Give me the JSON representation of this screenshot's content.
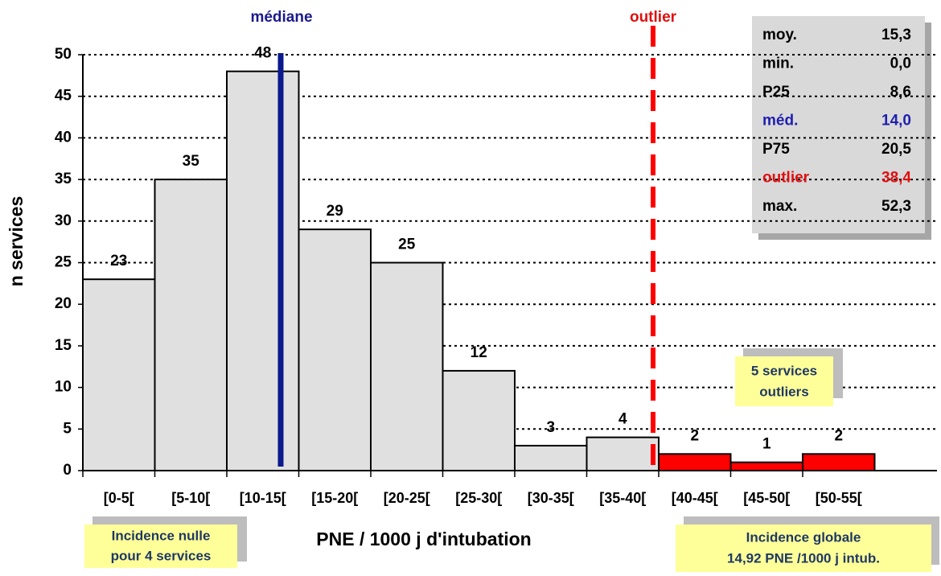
{
  "chart_data": {
    "type": "bar",
    "categories": [
      "[0-5[",
      "[5-10[",
      "[10-15[",
      "[15-20[",
      "[20-25[",
      "[25-30[",
      "[30-35[",
      "[35-40[",
      "[40-45[",
      "[45-50[",
      "[50-55["
    ],
    "values": [
      23,
      35,
      48,
      29,
      25,
      12,
      3,
      4,
      2,
      1,
      2
    ],
    "colors": [
      "#e0e0e0",
      "#e0e0e0",
      "#e0e0e0",
      "#e0e0e0",
      "#e0e0e0",
      "#e0e0e0",
      "#e0e0e0",
      "#e0e0e0",
      "#ff0000",
      "#ff0000",
      "#ff0000"
    ],
    "ylim": [
      0,
      50
    ],
    "yticks": [
      0,
      5,
      10,
      15,
      20,
      25,
      30,
      35,
      40,
      45,
      50
    ],
    "grid": true,
    "y_label": "n services",
    "x_label": "PNE / 1000 j d'intubation",
    "annotations": {
      "median": "médiane",
      "outlier": "outlier",
      "outlier_box": [
        "5 services",
        "outliers"
      ],
      "null_box": [
        "Incidence nulle",
        "pour 4 services"
      ],
      "global_box": [
        "Incidence globale",
        "14,92 PNE /1000 j intub."
      ]
    },
    "stats": [
      [
        "moy.",
        "15,3"
      ],
      [
        "min.",
        "0,0"
      ],
      [
        "P25",
        "8,6"
      ],
      [
        "méd.",
        "14,0"
      ],
      [
        "P75",
        "20,5"
      ],
      [
        "outlier",
        "38,4"
      ],
      [
        "max.",
        "52,3"
      ]
    ],
    "stats_colors": [
      "#000000",
      "#000000",
      "#000000",
      "#1f1fb0",
      "#000000",
      "#e01010",
      "#000000"
    ]
  }
}
